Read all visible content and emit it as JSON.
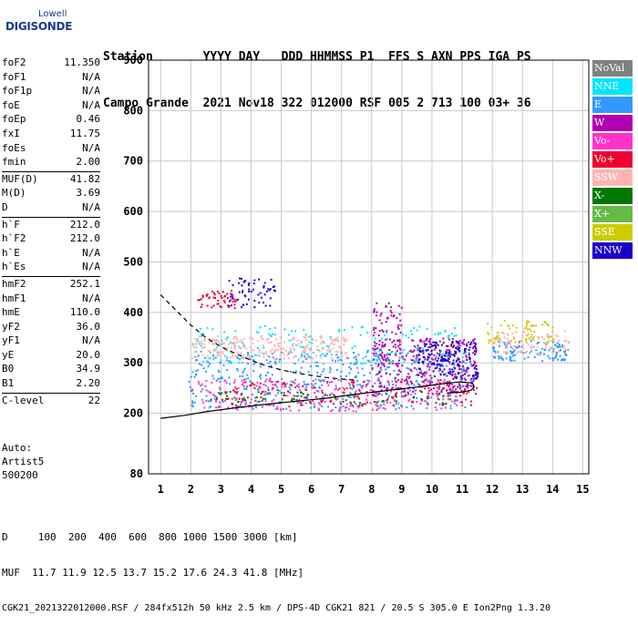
{
  "logo": {
    "top": "Lowell",
    "main": "DIGISONDE"
  },
  "header": {
    "line1": "Station       YYYY DAY   DDD HHMMSS P1  FFS S AXN PPS IGA PS",
    "line2": "Campo Grande  2021 Nov18 322 012000 RSF 005 2 713 100 03+ 36"
  },
  "params": [
    {
      "group": [
        [
          "foF2",
          "11.350"
        ],
        [
          "foF1",
          "N/A"
        ],
        [
          "foF1p",
          "N/A"
        ],
        [
          "foE",
          "N/A"
        ],
        [
          "foEp",
          "0.46"
        ],
        [
          "fxI",
          "11.75"
        ],
        [
          "foEs",
          "N/A"
        ],
        [
          "fmin",
          "2.00"
        ]
      ]
    },
    {
      "group": [
        [
          "MUF(D)",
          "41.82"
        ],
        [
          "M(D)",
          "3.69"
        ],
        [
          "D",
          "N/A"
        ]
      ]
    },
    {
      "group": [
        [
          "h`F",
          "212.0"
        ],
        [
          "h`F2",
          "212.0"
        ],
        [
          "h`E",
          "N/A"
        ],
        [
          "h`Es",
          "N/A"
        ]
      ]
    },
    {
      "group": [
        [
          "hmF2",
          "252.1"
        ],
        [
          "hmF1",
          "N/A"
        ],
        [
          "hmE",
          "110.0"
        ],
        [
          "yF2",
          "36.0"
        ],
        [
          "yF1",
          "N/A"
        ],
        [
          "yE",
          "20.0"
        ],
        [
          "B0",
          "34.9"
        ],
        [
          "B1",
          "2.20"
        ]
      ]
    },
    {
      "group": [
        [
          "C-level",
          "22"
        ]
      ]
    }
  ],
  "auto": {
    "l1": "Auto:",
    "l2": "Artist5",
    "l3": "500200"
  },
  "legend": [
    {
      "label": "NoVal",
      "color": "#808080"
    },
    {
      "label": "NNE",
      "color": "#00e5ff"
    },
    {
      "label": "E",
      "color": "#3399ff"
    },
    {
      "label": "W",
      "color": "#b000b0"
    },
    {
      "label": "Vo-",
      "color": "#ff33cc"
    },
    {
      "label": "Vo+",
      "color": "#ee0033"
    },
    {
      "label": "SSW",
      "color": "#ffb3b3"
    },
    {
      "label": "X-",
      "color": "#007700"
    },
    {
      "label": "X+",
      "color": "#66bb44"
    },
    {
      "label": "SSE",
      "color": "#cccc00"
    },
    {
      "label": "NNW",
      "color": "#1a00cc"
    }
  ],
  "footer": {
    "line1": "D     100  200  400  600  800 1000 1500 3000 [km]",
    "line2": "MUF  11.7 11.9 12.5 13.7 15.2 17.6 24.3 41.8 [MHz]",
    "line3": "CGK21_2021322012000.RSF / 284fx512h 50 kHz 2.5 km / DPS-4D CGK21 821 / 20.5 S 305.0 E Ion2Png 1.3.20"
  },
  "chart_data": {
    "type": "scatter",
    "xlim": [
      0.6,
      15.2
    ],
    "ylim": [
      80,
      900
    ],
    "xticks": [
      1,
      2,
      3,
      4,
      5,
      6,
      7,
      8,
      9,
      10,
      11,
      12,
      13,
      14,
      15
    ],
    "yticks": [
      80,
      200,
      300,
      400,
      500,
      600,
      700,
      800,
      900
    ],
    "grid": true,
    "clusters": [
      {
        "series": "E",
        "x": [
          1.9,
          11.3
        ],
        "y": [
          210,
          325
        ],
        "n": 520
      },
      {
        "series": "NNE",
        "x": [
          2.0,
          11.0
        ],
        "y": [
          300,
          375
        ],
        "n": 200
      },
      {
        "series": "SSW",
        "x": [
          2.0,
          7.2
        ],
        "y": [
          310,
          355
        ],
        "n": 260
      },
      {
        "series": "W",
        "x": [
          8.0,
          11.5
        ],
        "y": [
          240,
          350
        ],
        "n": 320
      },
      {
        "series": "NNW",
        "x": [
          9.5,
          11.5
        ],
        "y": [
          270,
          345
        ],
        "n": 160
      },
      {
        "series": "Vo-",
        "x": [
          2.0,
          11.0
        ],
        "y": [
          205,
          270
        ],
        "n": 240
      },
      {
        "series": "Vo+",
        "x": [
          3.0,
          11.3
        ],
        "y": [
          215,
          265
        ],
        "n": 150
      },
      {
        "series": "X-",
        "x": [
          2.5,
          11.0
        ],
        "y": [
          220,
          245
        ],
        "n": 70
      },
      {
        "series": "SSE",
        "x": [
          11.8,
          14.0
        ],
        "y": [
          340,
          385
        ],
        "n": 70
      },
      {
        "series": "E",
        "x": [
          12.0,
          14.5
        ],
        "y": [
          305,
          345
        ],
        "n": 120
      },
      {
        "series": "SSW",
        "x": [
          12.0,
          14.5
        ],
        "y": [
          320,
          365
        ],
        "n": 90
      },
      {
        "series": "NNW",
        "x": [
          3.2,
          4.8
        ],
        "y": [
          410,
          470
        ],
        "n": 60
      },
      {
        "series": "Vo+",
        "x": [
          2.2,
          3.5
        ],
        "y": [
          410,
          445
        ],
        "n": 50
      },
      {
        "series": "W",
        "x": [
          8.0,
          9.0
        ],
        "y": [
          330,
          420
        ],
        "n": 60
      }
    ],
    "curves": {
      "trace": {
        "style": "dashed",
        "x": [
          1.0,
          1.5,
          2.0,
          2.5,
          3.0,
          3.5,
          4.0,
          4.5,
          5.0,
          5.5,
          6.0,
          6.5,
          7.0,
          7.4
        ],
        "y": [
          435,
          405,
          375,
          350,
          332,
          318,
          305,
          294,
          286,
          280,
          275,
          271,
          268,
          266
        ]
      },
      "profile": {
        "style": "solid",
        "x": [
          1.0,
          1.8,
          2.5,
          3.5,
          4.5,
          5.5,
          6.5,
          7.5,
          8.5,
          9.5,
          10.3,
          10.9,
          11.35,
          11.4,
          11.3,
          11.0,
          10.5
        ],
        "y": [
          190,
          196,
          203,
          211,
          218,
          224,
          230,
          238,
          245,
          252,
          258,
          262,
          260,
          252,
          246,
          242,
          240
        ]
      }
    }
  }
}
